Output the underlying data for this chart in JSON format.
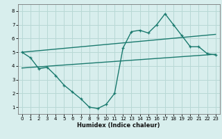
{
  "title": "",
  "xlabel": "Humidex (Indice chaleur)",
  "ylabel": "",
  "bg_color": "#d8eeed",
  "grid_color": "#b8d8d5",
  "line_color": "#1a7a6e",
  "xlim": [
    -0.5,
    23.5
  ],
  "ylim": [
    0.5,
    8.5
  ],
  "xticks": [
    0,
    1,
    2,
    3,
    4,
    5,
    6,
    7,
    8,
    9,
    10,
    11,
    12,
    13,
    14,
    15,
    16,
    17,
    18,
    19,
    20,
    21,
    22,
    23
  ],
  "yticks": [
    1,
    2,
    3,
    4,
    5,
    6,
    7,
    8
  ],
  "line1_x": [
    0,
    1,
    2,
    3,
    4,
    5,
    6,
    7,
    8,
    9,
    10,
    11,
    12,
    13,
    14,
    15,
    16,
    17,
    18,
    19,
    20,
    21,
    22,
    23
  ],
  "line1_y": [
    5.0,
    4.6,
    3.8,
    3.9,
    3.3,
    2.6,
    2.1,
    1.6,
    1.0,
    0.9,
    1.2,
    2.0,
    5.3,
    6.5,
    6.6,
    6.4,
    7.0,
    7.8,
    7.0,
    6.2,
    5.4,
    5.4,
    4.9,
    4.8
  ],
  "line2_x": [
    0,
    23
  ],
  "line2_y": [
    5.0,
    6.3
  ],
  "line3_x": [
    0,
    23
  ],
  "line3_y": [
    3.85,
    4.85
  ]
}
